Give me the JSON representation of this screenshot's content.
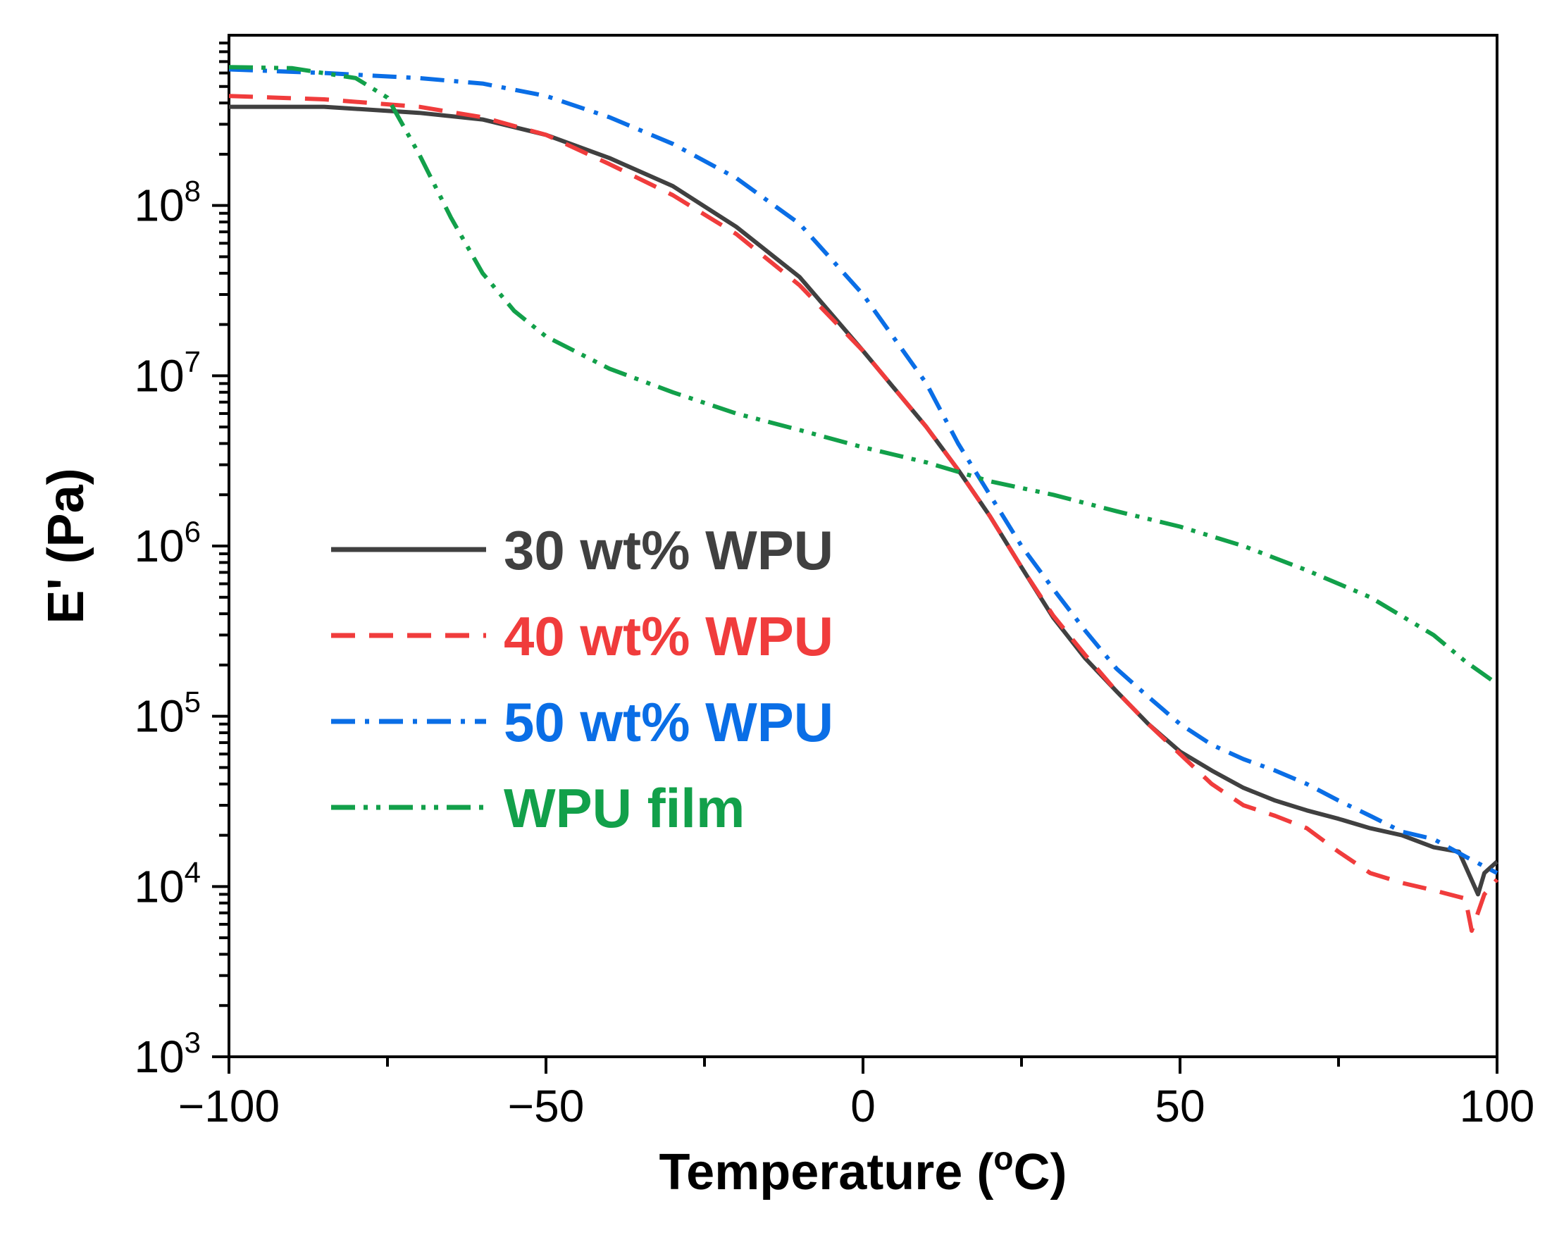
{
  "chart_data": {
    "type": "line",
    "xlabel": "Temperature (",
    "xlabel_sup": "o",
    "xlabel_end": "C)",
    "ylabel": "E' (Pa)",
    "xlim": [
      -100,
      100
    ],
    "ylim": [
      1000,
      1000000000
    ],
    "yscale": "log",
    "x_ticks": [
      -100,
      -50,
      0,
      50,
      100
    ],
    "x_tick_labels": [
      "−100",
      "−50",
      "0",
      "50",
      "100"
    ],
    "y_ticks": [
      1000,
      10000,
      100000,
      1000000,
      10000000,
      100000000
    ],
    "y_tick_base": "10",
    "y_tick_exponents": [
      "3",
      "4",
      "5",
      "6",
      "7",
      "8"
    ],
    "grid": false,
    "legend_position": "center-left",
    "series": [
      {
        "name": "30 wt% WPU",
        "color": "#404040",
        "dash": "solid",
        "points": [
          [
            -100,
            380000000
          ],
          [
            -85,
            380000000
          ],
          [
            -70,
            350000000
          ],
          [
            -60,
            320000000
          ],
          [
            -50,
            260000000
          ],
          [
            -40,
            190000000
          ],
          [
            -30,
            130000000
          ],
          [
            -20,
            75000000
          ],
          [
            -10,
            38000000
          ],
          [
            0,
            14000000
          ],
          [
            10,
            5000000
          ],
          [
            15,
            2800000
          ],
          [
            20,
            1500000
          ],
          [
            25,
            750000
          ],
          [
            30,
            380000
          ],
          [
            35,
            220000
          ],
          [
            40,
            140000
          ],
          [
            45,
            90000
          ],
          [
            50,
            62000
          ],
          [
            55,
            48000
          ],
          [
            60,
            38000
          ],
          [
            65,
            32000
          ],
          [
            70,
            28000
          ],
          [
            75,
            25000
          ],
          [
            80,
            22000
          ],
          [
            85,
            20000
          ],
          [
            90,
            17000
          ],
          [
            94,
            16000
          ],
          [
            97,
            9000
          ],
          [
            98,
            12000
          ],
          [
            100,
            14000
          ]
        ]
      },
      {
        "name": "40 wt% WPU",
        "color": "#f03c3c",
        "dash": "dashed",
        "points": [
          [
            -100,
            440000000
          ],
          [
            -85,
            420000000
          ],
          [
            -70,
            380000000
          ],
          [
            -60,
            330000000
          ],
          [
            -50,
            260000000
          ],
          [
            -40,
            175000000
          ],
          [
            -30,
            115000000
          ],
          [
            -20,
            68000000
          ],
          [
            -10,
            34000000
          ],
          [
            0,
            14000000
          ],
          [
            10,
            5000000
          ],
          [
            15,
            2800000
          ],
          [
            20,
            1500000
          ],
          [
            25,
            750000
          ],
          [
            30,
            390000
          ],
          [
            35,
            230000
          ],
          [
            40,
            140000
          ],
          [
            45,
            90000
          ],
          [
            50,
            60000
          ],
          [
            55,
            40000
          ],
          [
            60,
            30000
          ],
          [
            65,
            26000
          ],
          [
            70,
            22000
          ],
          [
            75,
            16000
          ],
          [
            80,
            12000
          ],
          [
            85,
            10500
          ],
          [
            90,
            9500
          ],
          [
            95,
            8500
          ],
          [
            96,
            5500
          ],
          [
            98,
            9000
          ],
          [
            100,
            11000
          ]
        ]
      },
      {
        "name": "50 wt% WPU",
        "color": "#0a6ee6",
        "dash": "dashdot",
        "points": [
          [
            -100,
            630000000
          ],
          [
            -85,
            600000000
          ],
          [
            -70,
            560000000
          ],
          [
            -60,
            520000000
          ],
          [
            -50,
            440000000
          ],
          [
            -40,
            330000000
          ],
          [
            -30,
            230000000
          ],
          [
            -20,
            145000000
          ],
          [
            -10,
            78000000
          ],
          [
            0,
            30000000
          ],
          [
            10,
            9000000
          ],
          [
            15,
            4000000
          ],
          [
            20,
            2000000
          ],
          [
            25,
            1000000
          ],
          [
            30,
            560000
          ],
          [
            35,
            320000
          ],
          [
            40,
            190000
          ],
          [
            45,
            130000
          ],
          [
            50,
            90000
          ],
          [
            55,
            68000
          ],
          [
            60,
            56000
          ],
          [
            65,
            48000
          ],
          [
            70,
            40000
          ],
          [
            75,
            32000
          ],
          [
            80,
            26000
          ],
          [
            85,
            21000
          ],
          [
            90,
            19000
          ],
          [
            95,
            15000
          ],
          [
            100,
            12000
          ]
        ]
      },
      {
        "name": "WPU film",
        "color": "#12a04a",
        "dash": "dashdotdot",
        "points": [
          [
            -100,
            650000000
          ],
          [
            -90,
            640000000
          ],
          [
            -80,
            560000000
          ],
          [
            -75,
            430000000
          ],
          [
            -70,
            200000000
          ],
          [
            -65,
            85000000
          ],
          [
            -60,
            40000000
          ],
          [
            -55,
            24000000
          ],
          [
            -50,
            17000000
          ],
          [
            -40,
            11000000
          ],
          [
            -30,
            8000000
          ],
          [
            -20,
            6000000
          ],
          [
            -10,
            4800000
          ],
          [
            0,
            3800000
          ],
          [
            10,
            3100000
          ],
          [
            20,
            2400000
          ],
          [
            30,
            2000000
          ],
          [
            40,
            1600000
          ],
          [
            50,
            1300000
          ],
          [
            60,
            1000000
          ],
          [
            70,
            720000
          ],
          [
            80,
            500000
          ],
          [
            90,
            300000
          ],
          [
            95,
            210000
          ],
          [
            100,
            155000
          ]
        ]
      }
    ]
  }
}
